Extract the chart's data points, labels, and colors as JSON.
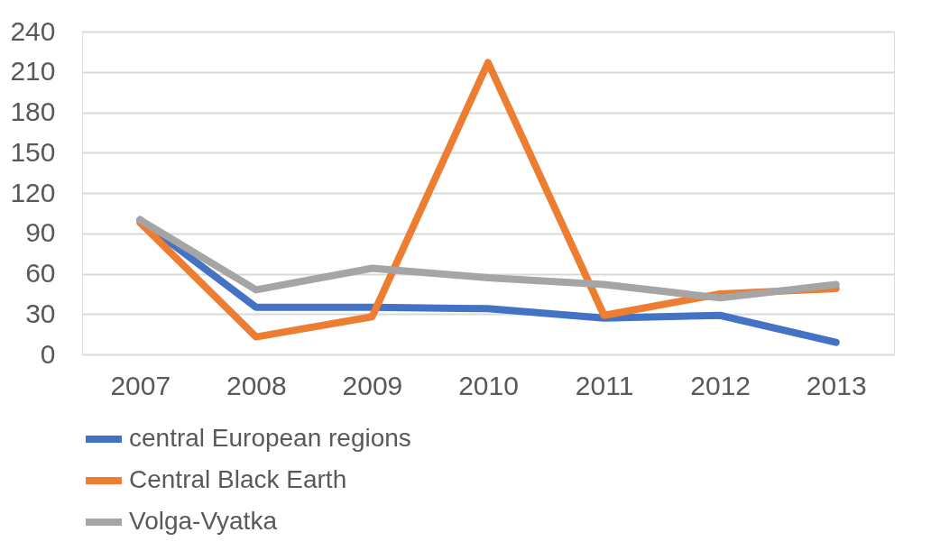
{
  "chart_data": {
    "type": "line",
    "categories": [
      "2007",
      "2008",
      "2009",
      "2010",
      "2011",
      "2012",
      "2013"
    ],
    "series": [
      {
        "name": "central European regions",
        "color": "#4472c4",
        "values": [
          100,
          35,
          35,
          34,
          27,
          29,
          9
        ]
      },
      {
        "name": "Central Black Earth",
        "color": "#ed7d31",
        "values": [
          98,
          13,
          28,
          217,
          29,
          45,
          49
        ]
      },
      {
        "name": "Volga-Vyatka",
        "color": "#a5a5a5",
        "values": [
          100,
          48,
          64,
          57,
          52,
          42,
          52
        ]
      }
    ],
    "ylim": [
      0,
      240
    ],
    "yticks": [
      0,
      30,
      60,
      90,
      120,
      150,
      180,
      210,
      240
    ],
    "grid": "y",
    "legend": "bottom",
    "marker": "none",
    "line_style": "solid"
  }
}
